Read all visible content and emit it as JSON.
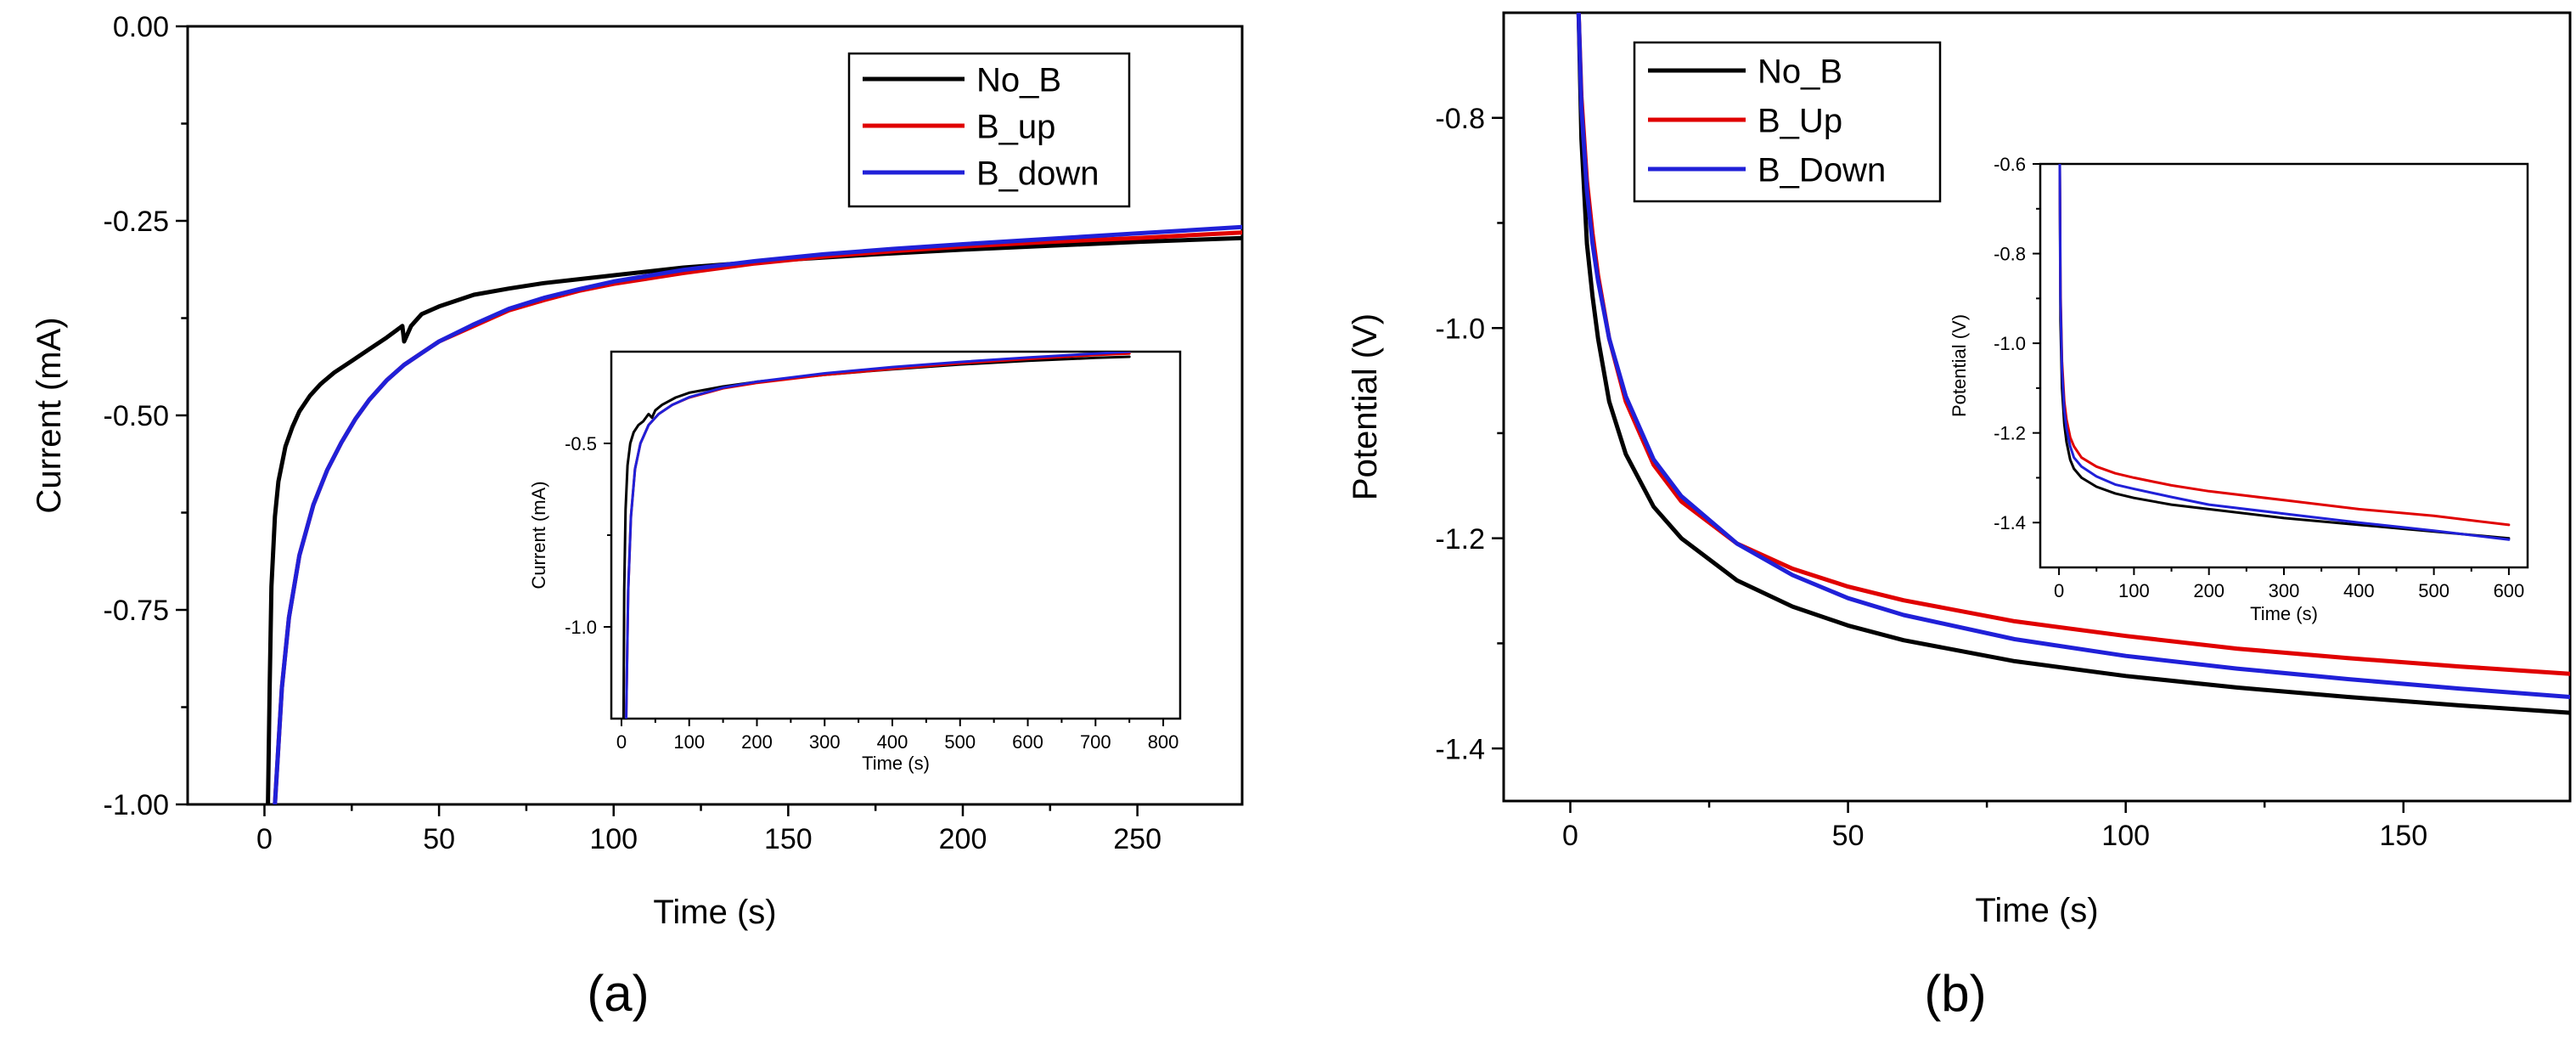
{
  "captions": {
    "a": "(a)",
    "b": "(b)"
  },
  "colors": {
    "No_B": "#000000",
    "B_up": "#e00000",
    "B_down": "#2020d8"
  },
  "chart_data": [
    {
      "id": "a",
      "type": "line",
      "title": "",
      "xlabel": "Time (s)",
      "ylabel": "Current (mA)",
      "xlim": [
        -22,
        280
      ],
      "ylim": [
        -1.0,
        0.0
      ],
      "xticks": [
        0,
        50,
        100,
        150,
        200,
        250
      ],
      "yticks": [
        0.0,
        -0.25,
        -0.5,
        -0.75,
        -1.0
      ],
      "ytick_labels": [
        "0.00",
        "-0.25",
        "-0.50",
        "-0.75",
        "-1.00"
      ],
      "legend": {
        "position": "top-right",
        "entries": [
          "No_B",
          "B_up",
          "B_down"
        ]
      },
      "series": [
        {
          "name": "No_B",
          "x": [
            1.0,
            1.5,
            2,
            3,
            4,
            6,
            8,
            10,
            13,
            16,
            20,
            25,
            30,
            35,
            39.5,
            40,
            42,
            45,
            50,
            60,
            70,
            80,
            100,
            120,
            150,
            175,
            200,
            225,
            250,
            280
          ],
          "y": [
            -1.0,
            -0.85,
            -0.72,
            -0.63,
            -0.585,
            -0.54,
            -0.515,
            -0.495,
            -0.475,
            -0.46,
            -0.445,
            -0.43,
            -0.415,
            -0.4,
            -0.385,
            -0.405,
            -0.385,
            -0.37,
            -0.36,
            -0.345,
            -0.337,
            -0.33,
            -0.32,
            -0.31,
            -0.3,
            -0.293,
            -0.287,
            -0.282,
            -0.277,
            -0.272
          ]
        },
        {
          "name": "B_up",
          "x": [
            3,
            5,
            7,
            10,
            14,
            18,
            22,
            26,
            30,
            35,
            40,
            45,
            50,
            60,
            70,
            80,
            90,
            100,
            120,
            140,
            160,
            180,
            200,
            225,
            250,
            280
          ],
          "y": [
            -1.0,
            -0.85,
            -0.76,
            -0.68,
            -0.615,
            -0.57,
            -0.535,
            -0.505,
            -0.48,
            -0.455,
            -0.435,
            -0.42,
            -0.405,
            -0.385,
            -0.365,
            -0.352,
            -0.34,
            -0.331,
            -0.317,
            -0.305,
            -0.296,
            -0.289,
            -0.283,
            -0.277,
            -0.272,
            -0.265
          ]
        },
        {
          "name": "B_down",
          "x": [
            3,
            5,
            7,
            10,
            14,
            18,
            22,
            26,
            30,
            35,
            40,
            45,
            50,
            60,
            70,
            80,
            90,
            100,
            120,
            140,
            160,
            180,
            200,
            225,
            250,
            280
          ],
          "y": [
            -1.0,
            -0.85,
            -0.76,
            -0.68,
            -0.615,
            -0.57,
            -0.535,
            -0.505,
            -0.48,
            -0.455,
            -0.435,
            -0.42,
            -0.405,
            -0.383,
            -0.363,
            -0.349,
            -0.338,
            -0.328,
            -0.313,
            -0.302,
            -0.293,
            -0.286,
            -0.28,
            -0.273,
            -0.266,
            -0.258
          ]
        }
      ],
      "inset": {
        "xlabel": "Time (s)",
        "ylabel": "Current (mA)",
        "xlim": [
          -15,
          825
        ],
        "ylim": [
          -1.25,
          -0.25
        ],
        "xticks": [
          0,
          100,
          200,
          300,
          400,
          500,
          600,
          700,
          800
        ],
        "yticks": [
          -0.5,
          -1.0
        ],
        "ytick_labels": [
          "-0.5",
          "-1.0"
        ],
        "series": [
          {
            "name": "No_B",
            "x": [
              3,
              4,
              6,
              9,
              13,
              18,
              25,
              32,
              40,
              45,
              50,
              60,
              80,
              100,
              150,
              200,
              300,
              400,
              500,
              600,
              700,
              750
            ],
            "y": [
              -1.25,
              -0.9,
              -0.68,
              -0.56,
              -0.5,
              -0.47,
              -0.45,
              -0.44,
              -0.42,
              -0.43,
              -0.41,
              -0.395,
              -0.375,
              -0.362,
              -0.345,
              -0.332,
              -0.313,
              -0.298,
              -0.285,
              -0.275,
              -0.267,
              -0.264
            ]
          },
          {
            "name": "B_up",
            "x": [
              7,
              10,
              14,
              20,
              28,
              40,
              55,
              75,
              100,
              150,
              200,
              300,
              400,
              500,
              600,
              700,
              750
            ],
            "y": [
              -1.25,
              -0.9,
              -0.7,
              -0.57,
              -0.5,
              -0.45,
              -0.42,
              -0.395,
              -0.375,
              -0.35,
              -0.335,
              -0.313,
              -0.297,
              -0.282,
              -0.27,
              -0.259,
              -0.255
            ]
          },
          {
            "name": "B_down",
            "x": [
              7,
              10,
              14,
              20,
              28,
              40,
              55,
              75,
              100,
              150,
              200,
              300,
              400,
              500,
              600,
              700,
              750
            ],
            "y": [
              -1.25,
              -0.9,
              -0.7,
              -0.57,
              -0.5,
              -0.45,
              -0.42,
              -0.395,
              -0.374,
              -0.348,
              -0.332,
              -0.309,
              -0.292,
              -0.278,
              -0.266,
              -0.255,
              -0.25
            ]
          }
        ]
      }
    },
    {
      "id": "b",
      "type": "line",
      "title": "",
      "xlabel": "Time (s)",
      "ylabel": "Potential (V)",
      "xlim": [
        -12,
        180
      ],
      "ylim": [
        -1.45,
        -0.7
      ],
      "xticks": [
        0,
        50,
        100,
        150
      ],
      "yticks": [
        -0.8,
        -1.0,
        -1.2,
        -1.4
      ],
      "ytick_labels": [
        "-0.8",
        "-1.0",
        "-1.2",
        "-1.4"
      ],
      "legend": {
        "position": "top-left",
        "entries": [
          "No_B",
          "B_Up",
          "B_Down"
        ]
      },
      "series": [
        {
          "name": "No_B",
          "x": [
            1.5,
            2,
            3,
            4,
            5,
            7,
            10,
            15,
            20,
            30,
            40,
            50,
            60,
            80,
            100,
            120,
            140,
            160,
            180
          ],
          "y": [
            -0.7,
            -0.82,
            -0.92,
            -0.97,
            -1.01,
            -1.07,
            -1.12,
            -1.17,
            -1.2,
            -1.24,
            -1.265,
            -1.283,
            -1.297,
            -1.317,
            -1.331,
            -1.342,
            -1.351,
            -1.359,
            -1.366
          ]
        },
        {
          "name": "B_Up",
          "x": [
            1.5,
            2,
            3,
            4,
            5,
            7,
            10,
            15,
            20,
            30,
            40,
            50,
            60,
            80,
            100,
            120,
            140,
            160,
            180
          ],
          "y": [
            -0.7,
            -0.78,
            -0.86,
            -0.91,
            -0.95,
            -1.01,
            -1.07,
            -1.13,
            -1.165,
            -1.205,
            -1.229,
            -1.246,
            -1.259,
            -1.279,
            -1.293,
            -1.305,
            -1.314,
            -1.322,
            -1.329
          ]
        },
        {
          "name": "B_Down",
          "x": [
            1.5,
            2,
            3,
            4,
            5,
            7,
            10,
            15,
            20,
            30,
            40,
            50,
            60,
            80,
            100,
            120,
            140,
            160,
            180
          ],
          "y": [
            -0.7,
            -0.79,
            -0.87,
            -0.92,
            -0.955,
            -1.01,
            -1.065,
            -1.125,
            -1.16,
            -1.205,
            -1.235,
            -1.257,
            -1.273,
            -1.296,
            -1.312,
            -1.324,
            -1.334,
            -1.343,
            -1.351
          ]
        }
      ],
      "inset": {
        "xlabel": "Time (s)",
        "ylabel": "Potential (V)",
        "xlim": [
          -25,
          625
        ],
        "ylim": [
          -1.5,
          -0.6
        ],
        "xticks": [
          0,
          100,
          200,
          300,
          400,
          500,
          600
        ],
        "yticks": [
          -0.6,
          -0.8,
          -1.0,
          -1.2,
          -1.4
        ],
        "ytick_labels": [
          "-0.6",
          "-0.8",
          "-1.0",
          "-1.2",
          "-1.4"
        ],
        "series": [
          {
            "name": "No_B",
            "x": [
              1,
              2,
              4,
              7,
              10,
              15,
              20,
              30,
              50,
              75,
              100,
              150,
              200,
              300,
              400,
              500,
              600
            ],
            "y": [
              -0.6,
              -0.95,
              -1.1,
              -1.18,
              -1.22,
              -1.26,
              -1.28,
              -1.3,
              -1.32,
              -1.335,
              -1.345,
              -1.36,
              -1.37,
              -1.39,
              -1.405,
              -1.42,
              -1.435
            ]
          },
          {
            "name": "B_Up",
            "x": [
              1,
              2,
              4,
              7,
              10,
              15,
              20,
              30,
              50,
              75,
              100,
              150,
              200,
              300,
              400,
              500,
              600
            ],
            "y": [
              -0.6,
              -0.88,
              -1.04,
              -1.13,
              -1.17,
              -1.21,
              -1.23,
              -1.255,
              -1.275,
              -1.29,
              -1.3,
              -1.317,
              -1.33,
              -1.35,
              -1.37,
              -1.385,
              -1.405
            ]
          },
          {
            "name": "B_Down",
            "x": [
              1,
              2,
              4,
              7,
              10,
              15,
              20,
              30,
              50,
              75,
              100,
              150,
              200,
              300,
              400,
              500,
              600
            ],
            "y": [
              -0.6,
              -0.9,
              -1.06,
              -1.15,
              -1.19,
              -1.23,
              -1.255,
              -1.275,
              -1.297,
              -1.315,
              -1.325,
              -1.343,
              -1.36,
              -1.38,
              -1.4,
              -1.418,
              -1.438
            ]
          }
        ]
      }
    }
  ]
}
